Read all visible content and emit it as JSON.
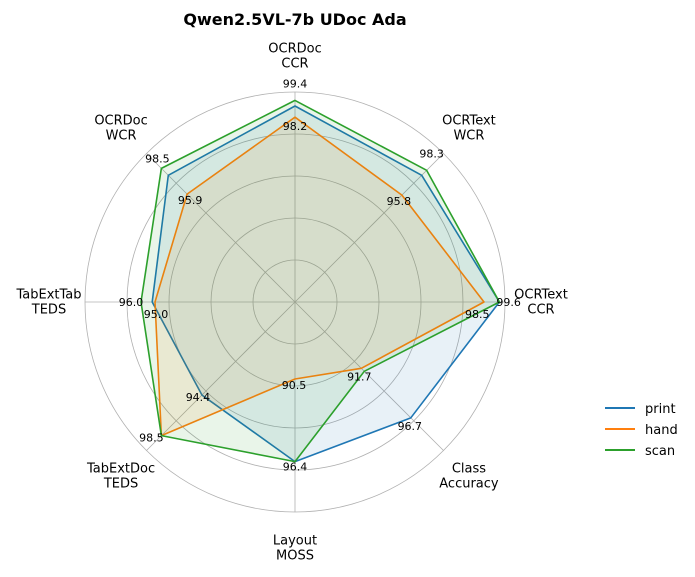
{
  "chart_data": {
    "type": "radar",
    "title": "Qwen2.5VL-7b UDoc Ada",
    "axes": [
      [
        "OCRDoc",
        "CCR"
      ],
      [
        "OCRText",
        "WCR"
      ],
      [
        "OCRText",
        "CCR"
      ],
      [
        "Class",
        "Accuracy"
      ],
      [
        "Layout",
        "MOSS"
      ],
      [
        "TabExtDoc",
        "TEDS"
      ],
      [
        "TabExtTab",
        "TEDS"
      ],
      [
        "OCRDoc",
        "WCR"
      ]
    ],
    "rlim": [
      85,
      100
    ],
    "grid": true,
    "legend_position": "right",
    "series": [
      {
        "name": "print",
        "color": "#1f77b4",
        "values": [
          99.0,
          97.8,
          99.6,
          96.7,
          96.4,
          94.4,
          95.2,
          97.8
        ]
      },
      {
        "name": "hand",
        "color": "#ff7f0e",
        "values": [
          98.2,
          95.8,
          98.5,
          91.7,
          90.5,
          98.5,
          95.0,
          95.9
        ]
      },
      {
        "name": "scan",
        "color": "#2ca02c",
        "values": [
          99.4,
          98.3,
          99.6,
          92.0,
          96.4,
          98.5,
          96.0,
          98.5
        ]
      }
    ],
    "annotations": [
      {
        "axis": 0,
        "text": "99.4",
        "r": 99.4,
        "dx": 0,
        "dy": -13,
        "anchor": "middle"
      },
      {
        "axis": 0,
        "text": "98.2",
        "r": 98.2,
        "dx": 0,
        "dy": 13,
        "anchor": "middle"
      },
      {
        "axis": 1,
        "text": "98.3",
        "r": 98.3,
        "dx": 5,
        "dy": -13,
        "anchor": "middle"
      },
      {
        "axis": 1,
        "text": "95.8",
        "r": 95.8,
        "dx": -3,
        "dy": 10,
        "anchor": "middle"
      },
      {
        "axis": 2,
        "text": "99.6",
        "r": 99.6,
        "dx": -3,
        "dy": 4,
        "anchor": "start"
      },
      {
        "axis": 2,
        "text": "98.5",
        "r": 98.5,
        "dx": -19,
        "dy": 16,
        "anchor": "start"
      },
      {
        "axis": 3,
        "text": "96.7",
        "r": 96.7,
        "dx": -1,
        "dy": 12,
        "anchor": "middle"
      },
      {
        "axis": 3,
        "text": "91.7",
        "r": 91.7,
        "dx": -2,
        "dy": 12,
        "anchor": "middle"
      },
      {
        "axis": 4,
        "text": "96.4",
        "r": 96.4,
        "dx": 0,
        "dy": 9,
        "anchor": "middle"
      },
      {
        "axis": 4,
        "text": "90.5",
        "r": 90.5,
        "dx": -1,
        "dy": 10,
        "anchor": "middle"
      },
      {
        "axis": 5,
        "text": "98.5",
        "r": 98.5,
        "dx": -10,
        "dy": 6,
        "anchor": "middle"
      },
      {
        "axis": 5,
        "text": "94.4",
        "r": 94.4,
        "dx": -4,
        "dy": 6,
        "anchor": "middle"
      },
      {
        "axis": 6,
        "text": "96.0",
        "r": 96.0,
        "dx": -10,
        "dy": 4,
        "anchor": "middle"
      },
      {
        "axis": 6,
        "text": "95.0",
        "r": 95.0,
        "dx": 1,
        "dy": 16,
        "anchor": "middle"
      },
      {
        "axis": 7,
        "text": "98.5",
        "r": 98.5,
        "dx": -4,
        "dy": -6,
        "anchor": "middle"
      },
      {
        "axis": 7,
        "text": "95.9",
        "r": 95.9,
        "dx": 3,
        "dy": 10,
        "anchor": "middle"
      }
    ]
  }
}
